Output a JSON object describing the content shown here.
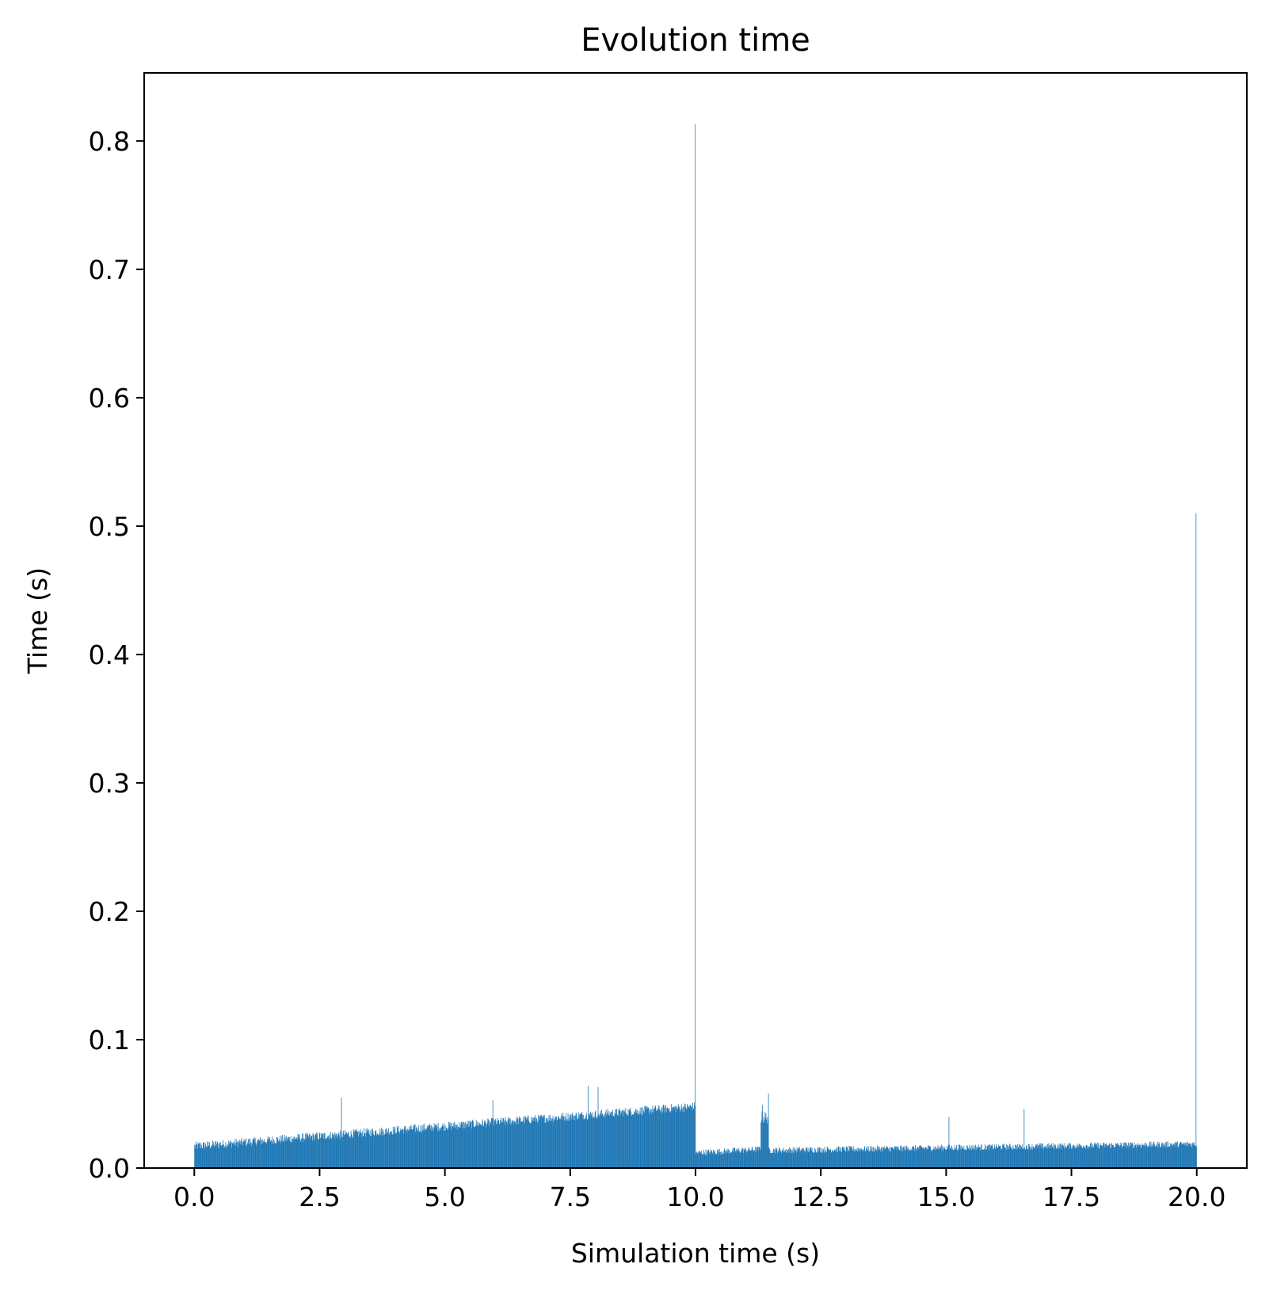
{
  "chart_data": {
    "type": "bar",
    "title": "Evolution time",
    "xlabel": "Simulation time (s)",
    "ylabel": "Time (s)",
    "xlim": [
      -1.0,
      21.0
    ],
    "ylim": [
      0.0,
      0.853
    ],
    "grid": false,
    "color": "#1f77b4",
    "x_ticks": [
      0.0,
      2.5,
      5.0,
      7.5,
      10.0,
      12.5,
      15.0,
      17.5,
      20.0
    ],
    "x_tick_labels": [
      "0.0",
      "2.5",
      "5.0",
      "7.5",
      "10.0",
      "12.5",
      "15.0",
      "17.5",
      "20.0"
    ],
    "y_ticks": [
      0.0,
      0.1,
      0.2,
      0.3,
      0.4,
      0.5,
      0.6,
      0.7,
      0.8
    ],
    "y_tick_labels": [
      "0.0",
      "0.1",
      "0.2",
      "0.3",
      "0.4",
      "0.5",
      "0.6",
      "0.7",
      "0.8"
    ],
    "bin_width": 0.01,
    "x_range": [
      0.0,
      20.0
    ],
    "baseline_segments": [
      {
        "x_start": 0.0,
        "x_end": 10.0,
        "y_start": 0.016,
        "y_end": 0.047,
        "noise": 0.007
      },
      {
        "x_start": 10.0,
        "x_end": 11.3,
        "y_start": 0.011,
        "y_end": 0.014,
        "noise": 0.005
      },
      {
        "x_start": 11.3,
        "x_end": 11.45,
        "y_start": 0.038,
        "y_end": 0.038,
        "noise": 0.01
      },
      {
        "x_start": 11.45,
        "x_end": 20.0,
        "y_start": 0.013,
        "y_end": 0.018,
        "noise": 0.005
      }
    ],
    "spikes": [
      {
        "x": 2.93,
        "y": 0.055
      },
      {
        "x": 5.95,
        "y": 0.053
      },
      {
        "x": 7.85,
        "y": 0.064
      },
      {
        "x": 8.05,
        "y": 0.063
      },
      {
        "x": 9.99,
        "y": 0.813
      },
      {
        "x": 11.33,
        "y": 0.049
      },
      {
        "x": 11.45,
        "y": 0.058
      },
      {
        "x": 15.05,
        "y": 0.04
      },
      {
        "x": 16.55,
        "y": 0.046
      },
      {
        "x": 19.99,
        "y": 0.51
      }
    ]
  }
}
